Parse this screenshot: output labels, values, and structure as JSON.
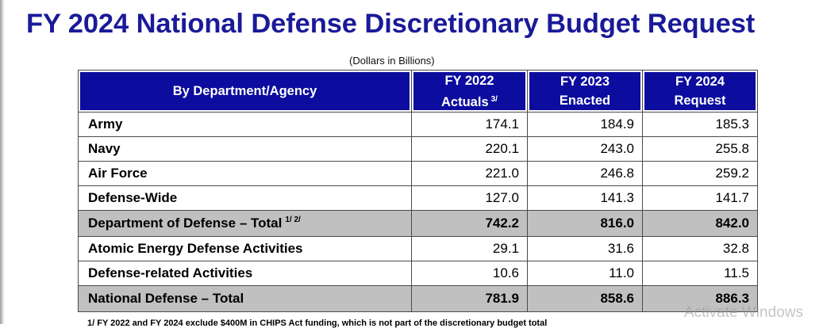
{
  "title": "FY 2024 National Defense Discretionary Budget Request",
  "units": "(Dollars in Billions)",
  "table": {
    "headers": {
      "department": "By Department/Agency",
      "fy2022_line1": "FY 2022",
      "fy2022_line2": "Actuals",
      "fy2022_footnote": "3/",
      "fy2023_line1": "FY 2023",
      "fy2023_line2": "Enacted",
      "fy2024_line1": "FY 2024",
      "fy2024_line2": "Request"
    },
    "rows": [
      {
        "name": "Army",
        "fy2022": "174.1",
        "fy2023": "184.9",
        "fy2024": "185.3"
      },
      {
        "name": "Navy",
        "fy2022": "220.1",
        "fy2023": "243.0",
        "fy2024": "255.8"
      },
      {
        "name": "Air Force",
        "fy2022": "221.0",
        "fy2023": "246.8",
        "fy2024": "259.2"
      },
      {
        "name": "Defense-Wide",
        "fy2022": "127.0",
        "fy2023": "141.3",
        "fy2024": "141.7"
      },
      {
        "name": "Department of Defense – Total",
        "footnote": "1/ 2/",
        "fy2022": "742.2",
        "fy2023": "816.0",
        "fy2024": "842.0"
      },
      {
        "name": "Atomic Energy Defense Activities",
        "fy2022": "29.1",
        "fy2023": "31.6",
        "fy2024": "32.8"
      },
      {
        "name": "Defense-related Activities",
        "fy2022": "10.6",
        "fy2023": "11.0",
        "fy2024": "11.5"
      },
      {
        "name": "National Defense – Total",
        "fy2022": "781.9",
        "fy2023": "858.6",
        "fy2024": "886.3"
      }
    ]
  },
  "footnote_text": "1/ FY 2022 and FY 2024 exclude $400M in CHIPS Act funding, which is not part of the discretionary budget total",
  "watermark": "Activate Windows",
  "colors": {
    "title": "#1a1a99",
    "header_bg": "#0c0c9e",
    "total_row_bg": "#c0c0c0"
  }
}
